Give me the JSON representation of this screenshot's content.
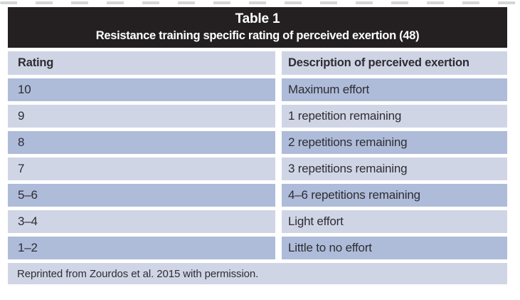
{
  "table": {
    "title_line1": "Table 1",
    "title_line2": "Resistance training specific rating of perceived exertion (48)",
    "columns": [
      "Rating",
      "Description of perceived exertion"
    ],
    "rows": [
      {
        "rating": "10",
        "description": "Maximum effort"
      },
      {
        "rating": "9",
        "description": "1 repetition remaining"
      },
      {
        "rating": "8",
        "description": "2 repetitions remaining"
      },
      {
        "rating": "7",
        "description": "3 repetitions remaining"
      },
      {
        "rating": "5–6",
        "description": "4–6 repetitions remaining"
      },
      {
        "rating": "3–4",
        "description": "Light effort"
      },
      {
        "rating": "1–2",
        "description": "Little to no effort"
      }
    ],
    "footnote": "Reprinted from Zourdos et al. 2015 with permission.",
    "colors": {
      "title_band": "#242021",
      "title_text": "#ffffff",
      "row_dark": "#aebcda",
      "row_light": "#d0d5e6",
      "header_row": "#cfd4e5",
      "body_text": "#2e2d32",
      "gap": "#ffffff"
    }
  }
}
